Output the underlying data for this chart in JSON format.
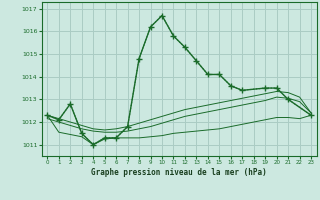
{
  "title": "Graphe pression niveau de la mer (hPa)",
  "background_color": "#cce8e0",
  "grid_color": "#aaccc4",
  "line_color": "#1a6b2a",
  "xlim": [
    -0.5,
    23.5
  ],
  "ylim": [
    1010.5,
    1017.3
  ],
  "yticks": [
    1011,
    1012,
    1013,
    1014,
    1015,
    1016,
    1017
  ],
  "xticks": [
    0,
    1,
    2,
    3,
    4,
    5,
    6,
    7,
    8,
    9,
    10,
    11,
    12,
    13,
    14,
    15,
    16,
    17,
    18,
    19,
    20,
    21,
    22,
    23
  ],
  "curve_main_x": [
    0,
    1,
    2,
    3,
    4,
    5,
    6,
    7,
    8,
    9,
    10,
    11,
    12,
    13,
    14,
    15,
    16,
    17,
    19,
    20,
    21,
    23
  ],
  "curve_main_y": [
    1012.3,
    1012.1,
    1012.8,
    1011.5,
    1011.0,
    1011.3,
    1011.3,
    1011.8,
    1014.8,
    1016.2,
    1016.7,
    1015.8,
    1015.3,
    1014.7,
    1014.1,
    1014.1,
    1013.6,
    1013.4,
    1013.5,
    1013.5,
    1013.0,
    1012.3
  ],
  "curve_dotted_x": [
    0,
    1,
    2,
    3,
    4,
    5,
    6,
    7,
    8,
    9,
    10,
    11,
    12,
    13,
    14,
    15,
    16,
    17,
    19,
    20,
    21,
    23
  ],
  "curve_dotted_y": [
    1012.3,
    1012.1,
    1012.8,
    1011.5,
    1011.0,
    1011.3,
    1011.3,
    1011.8,
    1014.8,
    1016.2,
    1016.7,
    1015.8,
    1015.3,
    1014.7,
    1014.1,
    1014.1,
    1013.6,
    1013.4,
    1013.5,
    1013.5,
    1013.0,
    1012.3
  ],
  "curve_flat1_x": [
    0,
    1,
    2,
    3,
    4,
    5,
    6,
    7,
    8,
    9,
    10,
    11,
    12,
    13,
    14,
    15,
    16,
    17,
    18,
    19,
    20,
    21,
    22,
    23
  ],
  "curve_flat1_y": [
    1012.15,
    1012.0,
    1011.85,
    1011.7,
    1011.6,
    1011.55,
    1011.55,
    1011.6,
    1011.7,
    1011.8,
    1011.95,
    1012.1,
    1012.25,
    1012.35,
    1012.45,
    1012.55,
    1012.65,
    1012.75,
    1012.85,
    1012.95,
    1013.1,
    1013.05,
    1012.9,
    1012.4
  ],
  "curve_flat2_x": [
    0,
    2,
    3,
    4,
    5,
    6,
    7,
    8,
    9,
    10,
    11,
    12,
    13,
    14,
    15,
    16,
    17,
    18,
    19,
    20,
    21,
    22,
    23
  ],
  "curve_flat2_y": [
    1012.3,
    1012.0,
    1011.85,
    1011.7,
    1011.65,
    1011.7,
    1011.8,
    1011.95,
    1012.1,
    1012.25,
    1012.4,
    1012.55,
    1012.65,
    1012.75,
    1012.85,
    1012.95,
    1013.05,
    1013.15,
    1013.25,
    1013.35,
    1013.3,
    1013.1,
    1012.4
  ],
  "curve_bottom_x": [
    0,
    1,
    2,
    3,
    4,
    5,
    6,
    7,
    8,
    9,
    10,
    11,
    12,
    13,
    14,
    15,
    16,
    17,
    18,
    19,
    20,
    21,
    22,
    23
  ],
  "curve_bottom_y": [
    1012.3,
    1011.55,
    1011.45,
    1011.35,
    1011.0,
    1011.25,
    1011.3,
    1011.3,
    1011.3,
    1011.35,
    1011.4,
    1011.5,
    1011.55,
    1011.6,
    1011.65,
    1011.7,
    1011.8,
    1011.9,
    1012.0,
    1012.1,
    1012.2,
    1012.2,
    1012.15,
    1012.3
  ]
}
